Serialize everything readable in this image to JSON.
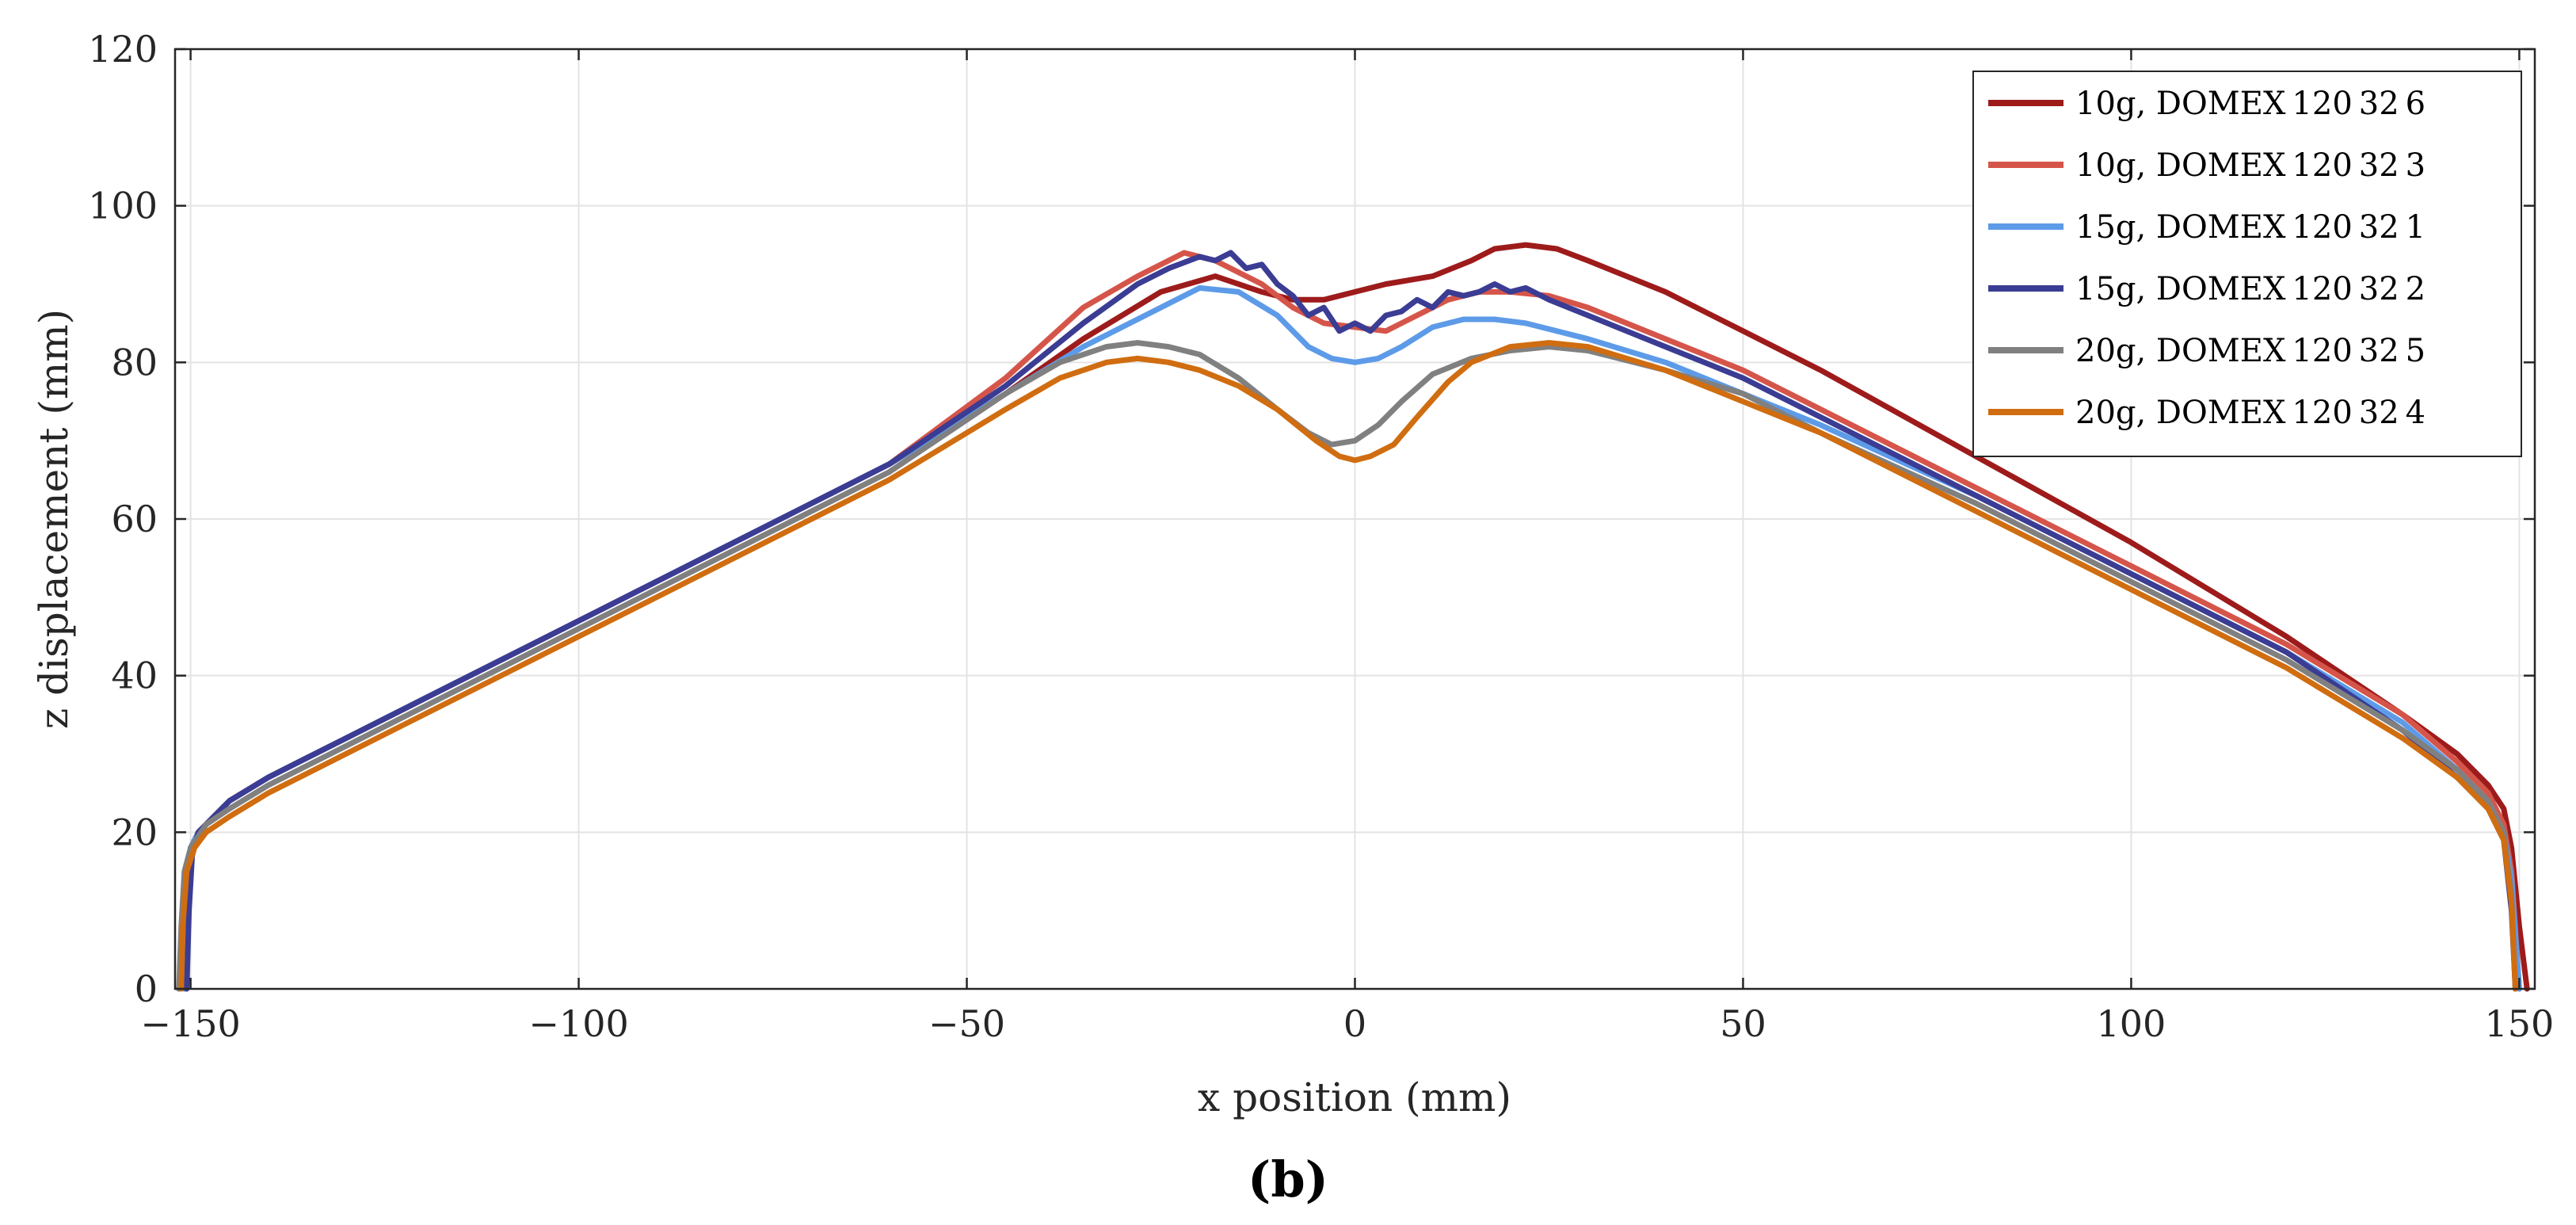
{
  "chart_data": {
    "type": "line",
    "title": "",
    "panel_label": "(b)",
    "xlabel": "x position (mm)",
    "ylabel": "z displacement (mm)",
    "xlim": [
      -152,
      152
    ],
    "ylim": [
      0,
      120
    ],
    "xticks": [
      -150,
      -100,
      -50,
      0,
      50,
      100,
      150
    ],
    "xtick_labels": [
      "−150",
      "−100",
      "−50",
      "0",
      "50",
      "100",
      "150"
    ],
    "yticks": [
      0,
      20,
      40,
      60,
      80,
      100,
      120
    ],
    "ytick_labels": [
      "0",
      "20",
      "40",
      "60",
      "80",
      "100",
      "120"
    ],
    "grid": true,
    "legend_position": "top-right",
    "series": [
      {
        "name": "10g, DOMEX_120_32_6",
        "label": "10g, DOMEX 120 32 6",
        "color": "#9e1b1b",
        "x": [
          -150.8,
          -150.5,
          -150,
          -149,
          -147,
          -145,
          -140,
          -130,
          -120,
          -100,
          -80,
          -60,
          -45,
          -35,
          -25,
          -18,
          -12,
          -8,
          -4,
          0,
          4,
          10,
          15,
          18,
          22,
          26,
          30,
          40,
          50,
          60,
          80,
          100,
          120,
          135,
          142,
          146,
          148,
          149,
          150,
          151
        ],
        "y": [
          0,
          10,
          18,
          20,
          22,
          24,
          27,
          32,
          37,
          47,
          57,
          67,
          76,
          83,
          89,
          91,
          89,
          88,
          88,
          89,
          90,
          91,
          93,
          94.5,
          95,
          94.5,
          93,
          89,
          84,
          79,
          68,
          57,
          45,
          35,
          30,
          26,
          23,
          18,
          8,
          0
        ]
      },
      {
        "name": "10g, DOMEX_120_32_3",
        "label": "10g, DOMEX 120 32 3",
        "color": "#d5554a",
        "x": [
          -150.8,
          -150.5,
          -150,
          -149,
          -147,
          -145,
          -140,
          -130,
          -120,
          -100,
          -80,
          -60,
          -45,
          -35,
          -28,
          -22,
          -18,
          -12,
          -8,
          -4,
          0,
          4,
          8,
          12,
          16,
          20,
          25,
          30,
          40,
          50,
          60,
          80,
          100,
          120,
          135,
          142,
          146,
          148,
          149,
          150
        ],
        "y": [
          0,
          10,
          18,
          20,
          22,
          24,
          27,
          32,
          37,
          47,
          57,
          67,
          78,
          87,
          91,
          94,
          93,
          90,
          87,
          85,
          84.5,
          84,
          86,
          88,
          89,
          89,
          88.5,
          87,
          83,
          79,
          74,
          64,
          54,
          44,
          35,
          29,
          25,
          21,
          15,
          0
        ]
      },
      {
        "name": "15g, DOMEX_120_32_1",
        "label": "15g, DOMEX 120 32 1",
        "color": "#5d9be8",
        "x": [
          -150.8,
          -150.5,
          -150,
          -149,
          -147,
          -145,
          -140,
          -130,
          -120,
          -100,
          -80,
          -60,
          -45,
          -35,
          -25,
          -20,
          -15,
          -10,
          -6,
          -3,
          0,
          3,
          6,
          10,
          14,
          18,
          22,
          30,
          40,
          50,
          60,
          80,
          100,
          120,
          135,
          142,
          146,
          148,
          149,
          150
        ],
        "y": [
          0,
          10,
          18,
          20,
          22,
          24,
          27,
          32,
          37,
          47,
          57,
          67,
          76,
          82,
          87,
          89.5,
          89,
          86,
          82,
          80.5,
          80,
          80.5,
          82,
          84.5,
          85.5,
          85.5,
          85,
          83,
          80,
          76,
          72,
          63,
          53,
          43,
          34,
          28,
          24,
          20,
          14,
          0
        ]
      },
      {
        "name": "15g, DOMEX_120_32_2",
        "label": "15g, DOMEX 120 32 2",
        "color": "#3b3c93",
        "x": [
          -150.5,
          -150.2,
          -149.8,
          -149,
          -147,
          -145,
          -140,
          -130,
          -120,
          -100,
          -80,
          -60,
          -45,
          -35,
          -28,
          -24,
          -20,
          -18,
          -16,
          -14,
          -12,
          -10,
          -8,
          -6,
          -4,
          -2,
          0,
          2,
          4,
          6,
          8,
          10,
          12,
          14,
          16,
          18,
          20,
          22,
          25,
          30,
          40,
          50,
          60,
          80,
          100,
          120,
          135,
          142,
          146,
          148,
          149,
          149.5
        ],
        "y": [
          0,
          10,
          17,
          20,
          22,
          24,
          27,
          32,
          37,
          47,
          57,
          67,
          77,
          85,
          90,
          92,
          93.5,
          93,
          94,
          92,
          92.5,
          90,
          88.5,
          86,
          87,
          84,
          85,
          84,
          86,
          86.5,
          88,
          87,
          89,
          88.5,
          89,
          90,
          89,
          89.5,
          88,
          86,
          82,
          78,
          73,
          63,
          53,
          43,
          33,
          27,
          23,
          19,
          10,
          0
        ]
      },
      {
        "name": "20g, DOMEX_120_32_5",
        "label": "20g, DOMEX 120 32 5",
        "color": "#808080",
        "x": [
          -151.5,
          -151.2,
          -150.8,
          -150,
          -148,
          -145,
          -140,
          -130,
          -120,
          -100,
          -80,
          -60,
          -45,
          -38,
          -32,
          -28,
          -24,
          -20,
          -15,
          -10,
          -6,
          -3,
          0,
          3,
          6,
          10,
          15,
          20,
          25,
          30,
          40,
          50,
          60,
          80,
          100,
          120,
          135,
          142,
          146,
          148,
          149,
          149.5
        ],
        "y": [
          0,
          8,
          15,
          18,
          21,
          23,
          26,
          31,
          36,
          46,
          56,
          66,
          76,
          80,
          82,
          82.5,
          82,
          81,
          78,
          74,
          71,
          69.5,
          70,
          72,
          75,
          78.5,
          80.5,
          81.5,
          82,
          81.5,
          79,
          76,
          71,
          62,
          52,
          42,
          33,
          28,
          24,
          20,
          12,
          0
        ]
      },
      {
        "name": "20g, DOMEX_120_32_4",
        "label": "20g, DOMEX 120 32 4",
        "color": "#d06d10",
        "x": [
          -151.2,
          -151,
          -150.5,
          -149.5,
          -148,
          -145,
          -140,
          -130,
          -120,
          -100,
          -80,
          -60,
          -45,
          -38,
          -32,
          -28,
          -24,
          -20,
          -15,
          -10,
          -5,
          -2,
          0,
          2,
          5,
          8,
          12,
          15,
          20,
          25,
          30,
          40,
          50,
          60,
          80,
          100,
          120,
          135,
          142,
          146,
          148,
          149,
          149.5
        ],
        "y": [
          0,
          8,
          15,
          18,
          20,
          22,
          25,
          30,
          35,
          45,
          55,
          65,
          74,
          78,
          80,
          80.5,
          80,
          79,
          77,
          74,
          70,
          68,
          67.5,
          68,
          69.5,
          73,
          77.5,
          80,
          82,
          82.5,
          82,
          79,
          75,
          71,
          61,
          51,
          41,
          32,
          27,
          23,
          19,
          11,
          0
        ]
      }
    ]
  }
}
